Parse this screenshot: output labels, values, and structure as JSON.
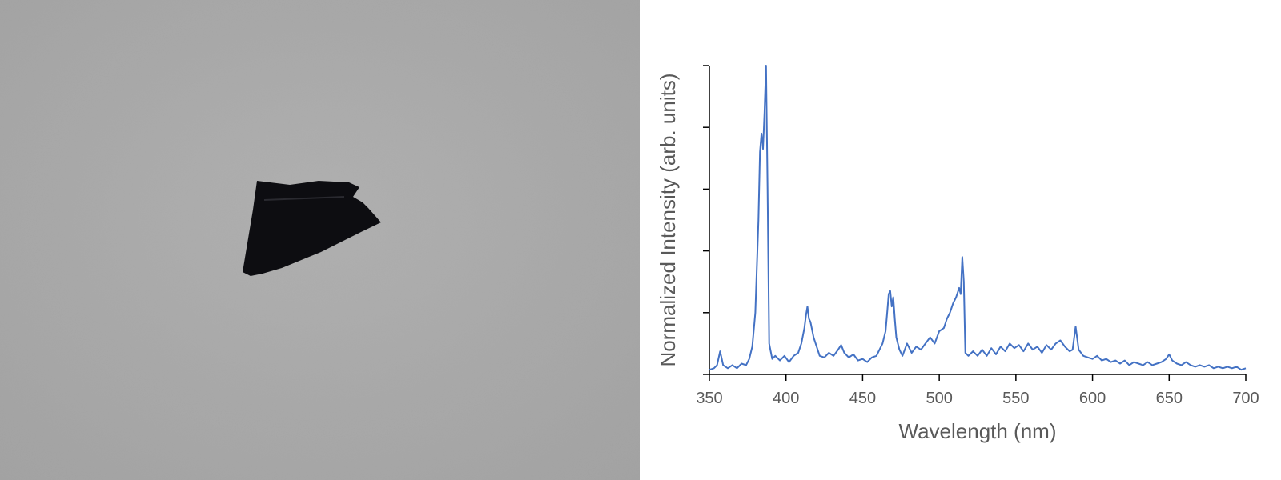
{
  "colors": {
    "series": "#4472c4",
    "axis": "#000000",
    "text": "#595959",
    "background_photo": "#a9a9a9",
    "sample": "#0c0c10"
  },
  "photo": {
    "subject": "dark-sample-fragment"
  },
  "chart_data": {
    "type": "line",
    "title": "",
    "xlabel": "Wavelength (nm)",
    "ylabel": "Normalized Intensity (arb. units)",
    "xlim": [
      350,
      700
    ],
    "ylim": [
      0,
      1
    ],
    "x_ticks": [
      350,
      400,
      450,
      500,
      550,
      600,
      650,
      700
    ],
    "y_ticks": [
      0,
      0.2,
      0.4,
      0.6,
      0.8,
      1.0
    ],
    "y_tick_labels_shown": false,
    "grid": false,
    "legend": "none",
    "series": [
      {
        "points": [
          [
            350,
            0.015
          ],
          [
            353,
            0.02
          ],
          [
            355,
            0.03
          ],
          [
            357,
            0.075
          ],
          [
            359,
            0.03
          ],
          [
            362,
            0.02
          ],
          [
            365,
            0.03
          ],
          [
            368,
            0.02
          ],
          [
            371,
            0.035
          ],
          [
            374,
            0.03
          ],
          [
            376,
            0.05
          ],
          [
            378,
            0.09
          ],
          [
            380,
            0.2
          ],
          [
            382,
            0.5
          ],
          [
            383,
            0.72
          ],
          [
            384,
            0.78
          ],
          [
            385,
            0.73
          ],
          [
            386,
            0.85
          ],
          [
            387,
            1.0
          ],
          [
            388,
            0.6
          ],
          [
            389,
            0.1
          ],
          [
            391,
            0.05
          ],
          [
            393,
            0.06
          ],
          [
            396,
            0.045
          ],
          [
            399,
            0.06
          ],
          [
            402,
            0.04
          ],
          [
            405,
            0.06
          ],
          [
            408,
            0.07
          ],
          [
            410,
            0.1
          ],
          [
            412,
            0.15
          ],
          [
            413,
            0.19
          ],
          [
            414,
            0.22
          ],
          [
            415,
            0.18
          ],
          [
            416,
            0.17
          ],
          [
            418,
            0.12
          ],
          [
            420,
            0.09
          ],
          [
            422,
            0.06
          ],
          [
            425,
            0.055
          ],
          [
            428,
            0.07
          ],
          [
            431,
            0.06
          ],
          [
            434,
            0.08
          ],
          [
            436,
            0.095
          ],
          [
            438,
            0.07
          ],
          [
            441,
            0.055
          ],
          [
            444,
            0.065
          ],
          [
            447,
            0.045
          ],
          [
            450,
            0.05
          ],
          [
            453,
            0.04
          ],
          [
            456,
            0.055
          ],
          [
            459,
            0.06
          ],
          [
            461,
            0.08
          ],
          [
            463,
            0.1
          ],
          [
            465,
            0.14
          ],
          [
            466,
            0.2
          ],
          [
            467,
            0.26
          ],
          [
            468,
            0.27
          ],
          [
            469,
            0.22
          ],
          [
            470,
            0.25
          ],
          [
            471,
            0.18
          ],
          [
            472,
            0.12
          ],
          [
            474,
            0.08
          ],
          [
            476,
            0.06
          ],
          [
            479,
            0.1
          ],
          [
            482,
            0.07
          ],
          [
            485,
            0.09
          ],
          [
            488,
            0.08
          ],
          [
            491,
            0.1
          ],
          [
            494,
            0.12
          ],
          [
            497,
            0.1
          ],
          [
            500,
            0.14
          ],
          [
            503,
            0.15
          ],
          [
            505,
            0.18
          ],
          [
            507,
            0.2
          ],
          [
            509,
            0.23
          ],
          [
            511,
            0.25
          ],
          [
            513,
            0.28
          ],
          [
            514,
            0.26
          ],
          [
            515,
            0.38
          ],
          [
            516,
            0.3
          ],
          [
            517,
            0.07
          ],
          [
            519,
            0.06
          ],
          [
            522,
            0.075
          ],
          [
            525,
            0.06
          ],
          [
            528,
            0.08
          ],
          [
            531,
            0.06
          ],
          [
            534,
            0.085
          ],
          [
            537,
            0.065
          ],
          [
            540,
            0.09
          ],
          [
            543,
            0.075
          ],
          [
            546,
            0.1
          ],
          [
            549,
            0.085
          ],
          [
            552,
            0.095
          ],
          [
            555,
            0.075
          ],
          [
            558,
            0.1
          ],
          [
            561,
            0.08
          ],
          [
            564,
            0.09
          ],
          [
            567,
            0.07
          ],
          [
            570,
            0.095
          ],
          [
            573,
            0.08
          ],
          [
            576,
            0.1
          ],
          [
            579,
            0.11
          ],
          [
            582,
            0.09
          ],
          [
            585,
            0.075
          ],
          [
            587,
            0.08
          ],
          [
            589,
            0.155
          ],
          [
            591,
            0.08
          ],
          [
            594,
            0.06
          ],
          [
            597,
            0.055
          ],
          [
            600,
            0.05
          ],
          [
            603,
            0.06
          ],
          [
            606,
            0.045
          ],
          [
            609,
            0.05
          ],
          [
            612,
            0.04
          ],
          [
            615,
            0.045
          ],
          [
            618,
            0.035
          ],
          [
            621,
            0.045
          ],
          [
            624,
            0.03
          ],
          [
            627,
            0.04
          ],
          [
            630,
            0.035
          ],
          [
            633,
            0.03
          ],
          [
            636,
            0.04
          ],
          [
            639,
            0.03
          ],
          [
            642,
            0.035
          ],
          [
            645,
            0.04
          ],
          [
            648,
            0.05
          ],
          [
            650,
            0.065
          ],
          [
            652,
            0.045
          ],
          [
            655,
            0.035
          ],
          [
            658,
            0.03
          ],
          [
            661,
            0.04
          ],
          [
            664,
            0.03
          ],
          [
            667,
            0.025
          ],
          [
            670,
            0.03
          ],
          [
            673,
            0.025
          ],
          [
            676,
            0.03
          ],
          [
            679,
            0.02
          ],
          [
            682,
            0.025
          ],
          [
            685,
            0.02
          ],
          [
            688,
            0.025
          ],
          [
            691,
            0.02
          ],
          [
            694,
            0.025
          ],
          [
            697,
            0.015
          ],
          [
            700,
            0.02
          ]
        ]
      }
    ]
  }
}
